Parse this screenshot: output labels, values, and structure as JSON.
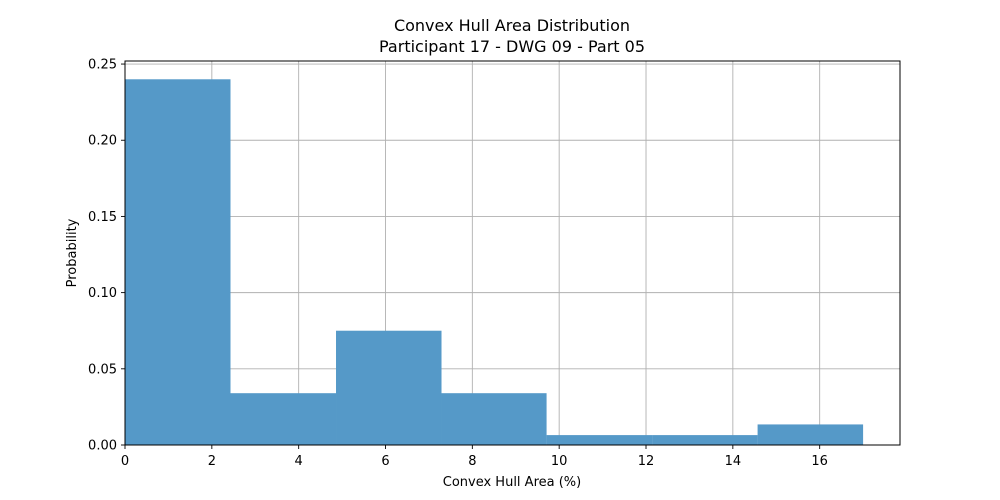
{
  "chart_data": {
    "type": "bar",
    "title": "Convex Hull Area Distribution",
    "subtitle": "Participant 17 - DWG 09 - Part 05",
    "xlabel": "Convex Hull Area (%)",
    "ylabel": "Probability",
    "xlim": [
      0,
      17.85
    ],
    "ylim": [
      0,
      0.252
    ],
    "xticks": [
      0,
      2,
      4,
      6,
      8,
      10,
      12,
      14,
      16
    ],
    "xtick_labels": [
      "0",
      "2",
      "4",
      "6",
      "8",
      "10",
      "12",
      "14",
      "16"
    ],
    "yticks": [
      0.0,
      0.05,
      0.1,
      0.15,
      0.2,
      0.25
    ],
    "ytick_labels": [
      "0.00",
      "0.05",
      "0.10",
      "0.15",
      "0.20",
      "0.25"
    ],
    "grid": true,
    "bar_color": "#5599c8",
    "bins": [
      {
        "x0": 0.0,
        "x1": 2.43,
        "value": 0.24
      },
      {
        "x0": 2.43,
        "x1": 4.86,
        "value": 0.034
      },
      {
        "x0": 4.86,
        "x1": 7.29,
        "value": 0.075
      },
      {
        "x0": 7.29,
        "x1": 9.71,
        "value": 0.034
      },
      {
        "x0": 9.71,
        "x1": 12.14,
        "value": 0.0065
      },
      {
        "x0": 12.14,
        "x1": 14.57,
        "value": 0.0065
      },
      {
        "x0": 14.57,
        "x1": 17.0,
        "value": 0.0135
      }
    ]
  }
}
